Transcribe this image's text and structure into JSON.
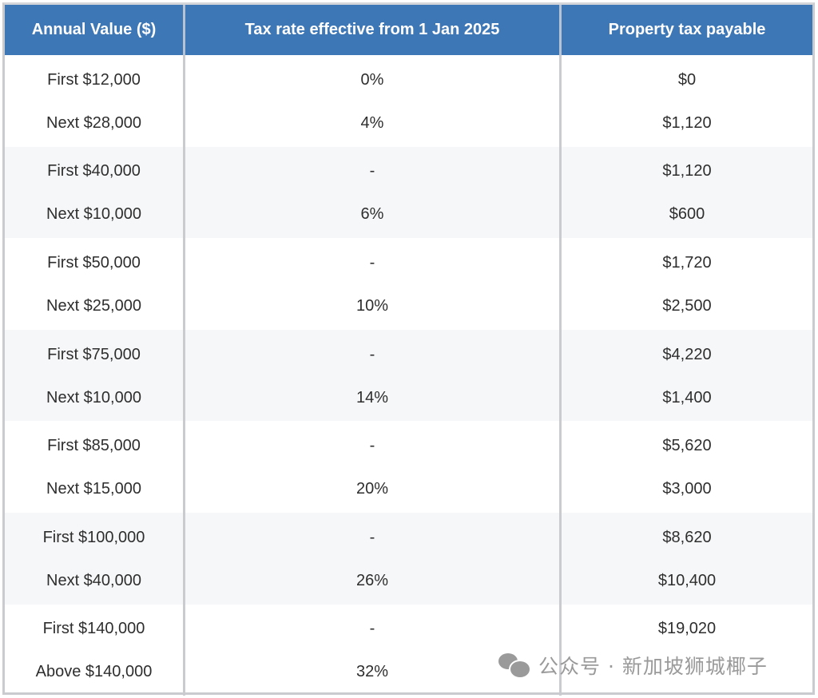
{
  "table": {
    "headers": [
      "Annual Value ($)",
      "Tax rate effective from 1 Jan 2025",
      "Property tax payable"
    ],
    "groups": [
      {
        "rows": [
          {
            "annual_value": "First $12,000",
            "rate": "0%",
            "tax": "$0"
          },
          {
            "annual_value": "Next $28,000",
            "rate": "4%",
            "tax": "$1,120"
          }
        ]
      },
      {
        "rows": [
          {
            "annual_value": "First $40,000",
            "rate": "-",
            "tax": "$1,120"
          },
          {
            "annual_value": "Next $10,000",
            "rate": "6%",
            "tax": "$600"
          }
        ]
      },
      {
        "rows": [
          {
            "annual_value": "First $50,000",
            "rate": "-",
            "tax": "$1,720"
          },
          {
            "annual_value": "Next $25,000",
            "rate": "10%",
            "tax": "$2,500"
          }
        ]
      },
      {
        "rows": [
          {
            "annual_value": "First $75,000",
            "rate": "-",
            "tax": "$4,220"
          },
          {
            "annual_value": "Next $10,000",
            "rate": "14%",
            "tax": "$1,400"
          }
        ]
      },
      {
        "rows": [
          {
            "annual_value": "First $85,000",
            "rate": "-",
            "tax": "$5,620"
          },
          {
            "annual_value": "Next $15,000",
            "rate": "20%",
            "tax": "$3,000"
          }
        ]
      },
      {
        "rows": [
          {
            "annual_value": "First $100,000",
            "rate": "-",
            "tax": "$8,620"
          },
          {
            "annual_value": "Next $40,000",
            "rate": "26%",
            "tax": "$10,400"
          }
        ]
      },
      {
        "rows": [
          {
            "annual_value": "First $140,000",
            "rate": "-",
            "tax": "$19,020"
          },
          {
            "annual_value": "Above $140,000",
            "rate": "32%",
            "tax": ""
          }
        ]
      }
    ]
  },
  "watermark": {
    "icon": "wechat-icon",
    "text": "公众号 · 新加坡狮城椰子"
  },
  "colors": {
    "header_bg": "#3e77b6",
    "alt_row_bg": "#f6f7f9",
    "border": "#c9cbce"
  }
}
